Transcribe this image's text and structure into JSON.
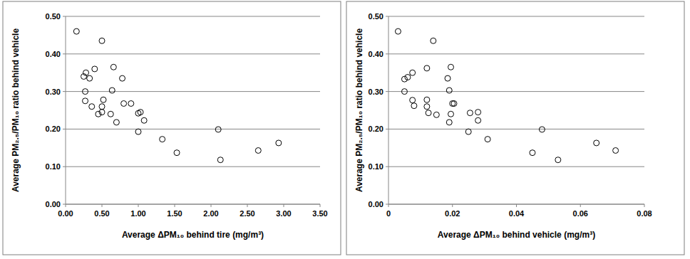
{
  "chart_data": [
    {
      "type": "scatter",
      "x_label": "Average ΔPM₁₀ behind tire (mg/m³)",
      "y_label": "Average PM₂.₅/PM₁₀ ratio behind vehicle",
      "x": [
        0.15,
        0.25,
        0.28,
        0.27,
        0.27,
        0.33,
        0.36,
        0.4,
        0.45,
        0.5,
        0.5,
        0.5,
        0.52,
        0.62,
        0.64,
        0.66,
        0.7,
        0.78,
        0.8,
        0.9,
        1.0,
        1.03,
        1.0,
        1.08,
        1.33,
        1.53,
        2.1,
        2.13,
        2.65,
        2.93
      ],
      "values": [
        0.46,
        0.34,
        0.35,
        0.3,
        0.275,
        0.335,
        0.26,
        0.36,
        0.24,
        0.435,
        0.26,
        0.245,
        0.278,
        0.24,
        0.303,
        0.365,
        0.218,
        0.335,
        0.268,
        0.268,
        0.242,
        0.245,
        0.193,
        0.223,
        0.173,
        0.137,
        0.199,
        0.118,
        0.143,
        0.163
      ],
      "color": "#000000",
      "marker": "open-circle",
      "grid": true,
      "xlim": [
        0,
        3.5
      ],
      "xticks": [
        {
          "value": 0,
          "label": "0.00"
        },
        {
          "value": 0.5,
          "label": "0.50"
        },
        {
          "value": 1,
          "label": "1.00"
        },
        {
          "value": 1.5,
          "label": "1.50"
        },
        {
          "value": 2,
          "label": "2.00"
        },
        {
          "value": 2.5,
          "label": "2.50"
        },
        {
          "value": 3,
          "label": "3.00"
        },
        {
          "value": 3.5,
          "label": "3.50"
        }
      ],
      "ylim": [
        0,
        0.5
      ],
      "yticks": [
        {
          "value": 0,
          "label": "0.00"
        },
        {
          "value": 0.1,
          "label": "0.10"
        },
        {
          "value": 0.2,
          "label": "0.20"
        },
        {
          "value": 0.3,
          "label": "0.30"
        },
        {
          "value": 0.4,
          "label": "0.40"
        },
        {
          "value": 0.5,
          "label": "0.50"
        }
      ]
    },
    {
      "type": "scatter",
      "x_label": "Average ΔPM₁₀ behind vehicle (mg/m³)",
      "y_label": "Average PM₂.₅/PM₁₀ ratio behind vehicle",
      "x": [
        0.003,
        0.005,
        0.005,
        0.006,
        0.0075,
        0.0075,
        0.008,
        0.012,
        0.012,
        0.012,
        0.0125,
        0.014,
        0.015,
        0.0185,
        0.019,
        0.0195,
        0.019,
        0.0195,
        0.02,
        0.0205,
        0.025,
        0.0255,
        0.028,
        0.028,
        0.031,
        0.045,
        0.048,
        0.053,
        0.065,
        0.071
      ],
      "values": [
        0.46,
        0.3,
        0.333,
        0.338,
        0.35,
        0.277,
        0.262,
        0.362,
        0.278,
        0.26,
        0.243,
        0.435,
        0.238,
        0.335,
        0.303,
        0.365,
        0.218,
        0.24,
        0.268,
        0.268,
        0.193,
        0.243,
        0.245,
        0.223,
        0.173,
        0.137,
        0.199,
        0.118,
        0.163,
        0.143
      ],
      "color": "#000000",
      "marker": "open-circle",
      "grid": true,
      "xlim": [
        0,
        0.08
      ],
      "xticks": [
        0,
        0.02,
        0.04,
        0.06,
        0.08
      ],
      "ylim": [
        0,
        0.5
      ],
      "yticks": [
        {
          "value": 0,
          "label": "0.00"
        },
        {
          "value": 0.1,
          "label": "0.10"
        },
        {
          "value": 0.2,
          "label": "0.20"
        },
        {
          "value": 0.3,
          "label": "0.30"
        },
        {
          "value": 0.4,
          "label": "0.40"
        },
        {
          "value": 0.5,
          "label": "0.50"
        }
      ]
    }
  ]
}
